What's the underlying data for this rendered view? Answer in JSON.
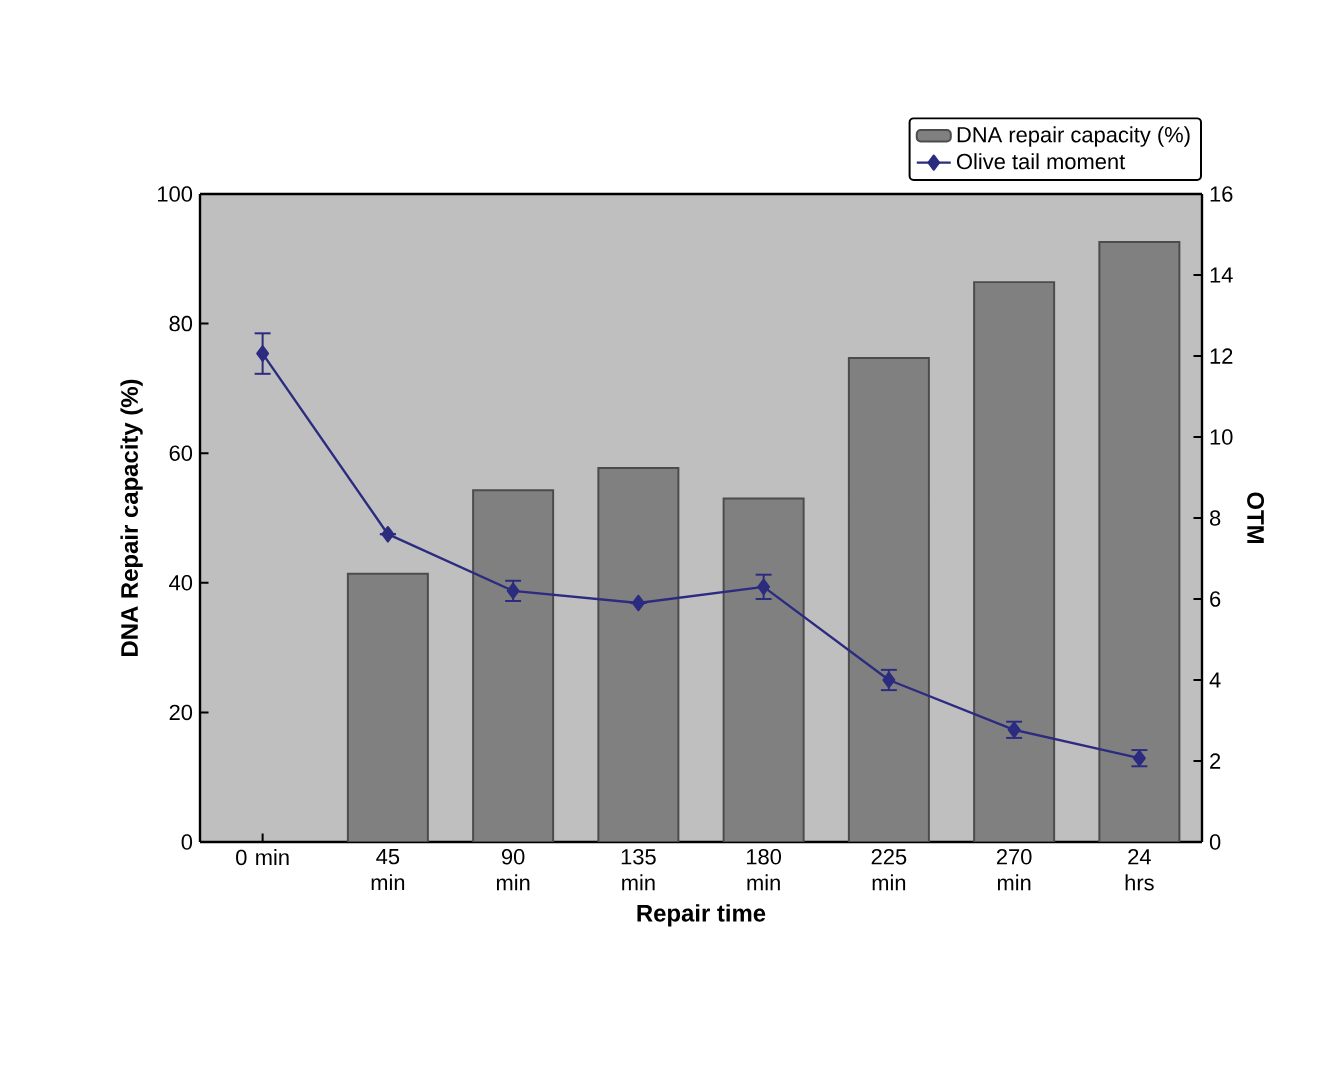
{
  "chart_data": {
    "type": "bar",
    "xlabel": "Repair time",
    "ylabel": "DNA Repair capacity (%)",
    "y2label": "OTM",
    "categories": [
      "0 min",
      "45 min",
      "90 min",
      "135 min",
      "180 min",
      "225 min",
      "270 min",
      "24 hrs"
    ],
    "series": [
      {
        "name": "DNA repair capacity (%)",
        "color": "#808080",
        "values": [
          null,
          41.4,
          54.3,
          57.7,
          53,
          74.7,
          86.4,
          92.6
        ]
      },
      {
        "name": "Olive tail moment",
        "type": "line",
        "axis": "y2",
        "color": "#2b2b80",
        "marker": "diamond",
        "line_style": "solid",
        "values": [
          12.06,
          7.6,
          6.2,
          5.9,
          6.3,
          4.0,
          2.77,
          2.07
        ],
        "errors": [
          0.5,
          null,
          0.25,
          null,
          0.3,
          0.25,
          0.2,
          0.2
        ]
      }
    ],
    "ylim": [
      0,
      100
    ],
    "yticks": [
      0,
      20,
      40,
      60,
      80,
      100
    ],
    "y2lim": [
      0,
      16
    ],
    "y2ticks": [
      0,
      2,
      4,
      6,
      8,
      10,
      12,
      14,
      16
    ],
    "legend": "top right"
  }
}
